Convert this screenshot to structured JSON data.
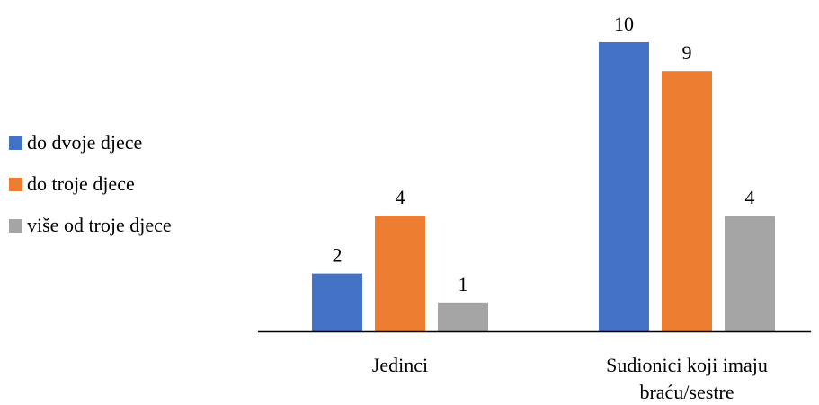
{
  "chart_data": {
    "type": "bar",
    "categories": [
      "Jedinci",
      "Sudionici koji imaju braću/sestre"
    ],
    "category_lines": [
      [
        "Jedinci"
      ],
      [
        "Sudionici koji imaju",
        "braću/sestre"
      ]
    ],
    "series": [
      {
        "name": "do dvoje djece",
        "values": [
          2,
          10
        ],
        "color": "#4472C4"
      },
      {
        "name": "do troje djece",
        "values": [
          4,
          9
        ],
        "color": "#ED7D31"
      },
      {
        "name": "više od troje djece",
        "values": [
          1,
          4
        ],
        "color": "#A5A5A5"
      }
    ],
    "title": "",
    "xlabel": "",
    "ylabel": "",
    "ylim": [
      0,
      10
    ],
    "grid": false,
    "legend": "left"
  }
}
